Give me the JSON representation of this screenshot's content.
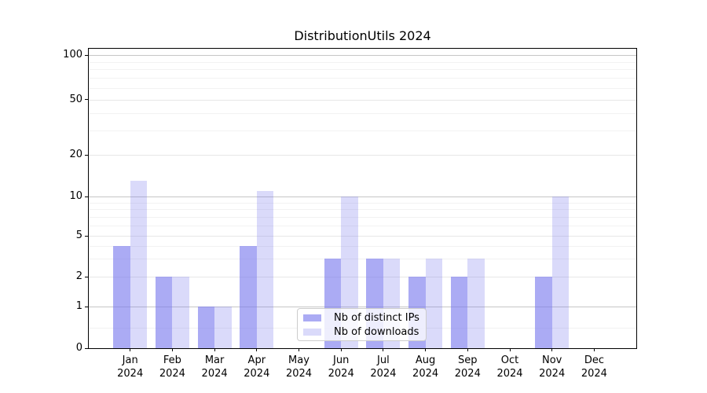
{
  "title": "DistributionUtils 2024",
  "chart_data": {
    "type": "bar",
    "title": "DistributionUtils 2024",
    "xlabel": "",
    "ylabel": "",
    "yscale": "symlog",
    "ylim": [
      0,
      110
    ],
    "grid": true,
    "legend_position": "lower-center",
    "categories": [
      "Jan 2024",
      "Feb 2024",
      "Mar 2024",
      "Apr 2024",
      "May 2024",
      "Jun 2024",
      "Jul 2024",
      "Aug 2024",
      "Sep 2024",
      "Oct 2024",
      "Nov 2024",
      "Dec 2024"
    ],
    "y_ticks": [
      0,
      1,
      2,
      5,
      10,
      20,
      50,
      100
    ],
    "y_minor_ticks": [
      0.5,
      3,
      4,
      6,
      7,
      8,
      9,
      30,
      40,
      60,
      70,
      80,
      90
    ],
    "series": [
      {
        "name": "Nb of distinct IPs",
        "color": "rgba(119,119,238,0.62)",
        "values": [
          4,
          2,
          1,
          4,
          0,
          3,
          3,
          2,
          2,
          0,
          2,
          0
        ]
      },
      {
        "name": "Nb of downloads",
        "color": "rgba(119,119,238,0.27)",
        "values": [
          13,
          2,
          1,
          11,
          0,
          10,
          3,
          3,
          3,
          0,
          10,
          0
        ]
      }
    ]
  },
  "colors": {
    "grid_decade": "#c6c6c6",
    "grid_sub": "#e7e7e7",
    "grid_minor": "#f2f2f2",
    "axis": "#000000",
    "legend_border": "#cccccc"
  }
}
